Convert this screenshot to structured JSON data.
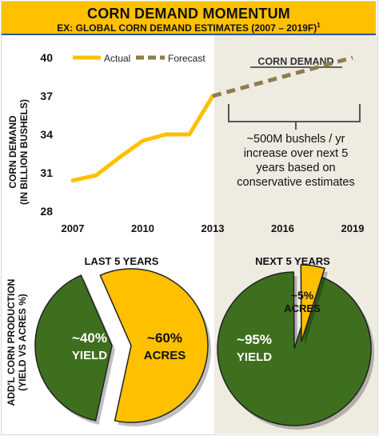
{
  "header": {
    "title": "CORN DEMAND MOMENTUM",
    "subtitle": "EX: GLOBAL CORN DEMAND ESTIMATES (2007 – 2019F)",
    "subtitle_note": "1"
  },
  "colors": {
    "actual": "#ffc000",
    "forecast": "#8c7e4c",
    "green": "#3e6f1e",
    "header_bg": "#ffc000",
    "header_rule": "#2f5597",
    "shade": "#eeebe1"
  },
  "chart_data": [
    {
      "type": "line",
      "ylabel": "CORN DEMAND",
      "ylabel2": "(IN BILLION BUSHELS)",
      "ylim": [
        28,
        41
      ],
      "yticks": [
        28,
        31,
        34,
        37,
        40
      ],
      "xlim": [
        2007,
        2019
      ],
      "xticks": [
        2007,
        2010,
        2013,
        2016,
        2019
      ],
      "grid": false,
      "legend_position": "top-left",
      "series": [
        {
          "name": "Actual",
          "style": "solid",
          "x": [
            2007,
            2008,
            2009,
            2010,
            2011,
            2012,
            2013
          ],
          "y": [
            30.4,
            30.8,
            32.2,
            33.5,
            34.0,
            34.0,
            37.0
          ]
        },
        {
          "name": "Forecast",
          "style": "dashed",
          "x": [
            2013,
            2019
          ],
          "y": [
            37.0,
            40.0
          ]
        }
      ],
      "annotations": {
        "region_title": "CORN DEMAND",
        "callout": [
          "~500M bushels / yr",
          "increase over next 5",
          "years based on",
          "conservative estimates"
        ]
      }
    },
    {
      "type": "pie",
      "side_label": "ADD'L CORN PRODUCTION",
      "side_label2": "(YIELD VS ACRES %)",
      "pies": [
        {
          "title": "LAST 5 YEARS",
          "slices": [
            {
              "label": "YIELD",
              "value": 40,
              "text": "~40%",
              "color": "#3e6f1e"
            },
            {
              "label": "ACRES",
              "value": 60,
              "text": "~60%",
              "color": "#ffc000"
            }
          ]
        },
        {
          "title": "NEXT 5 YEARS",
          "slices": [
            {
              "label": "YIELD",
              "value": 95,
              "text": "~95%",
              "color": "#3e6f1e"
            },
            {
              "label": "ACRES",
              "value": 5,
              "text": "~5%",
              "color": "#ffc000"
            }
          ]
        }
      ]
    }
  ]
}
